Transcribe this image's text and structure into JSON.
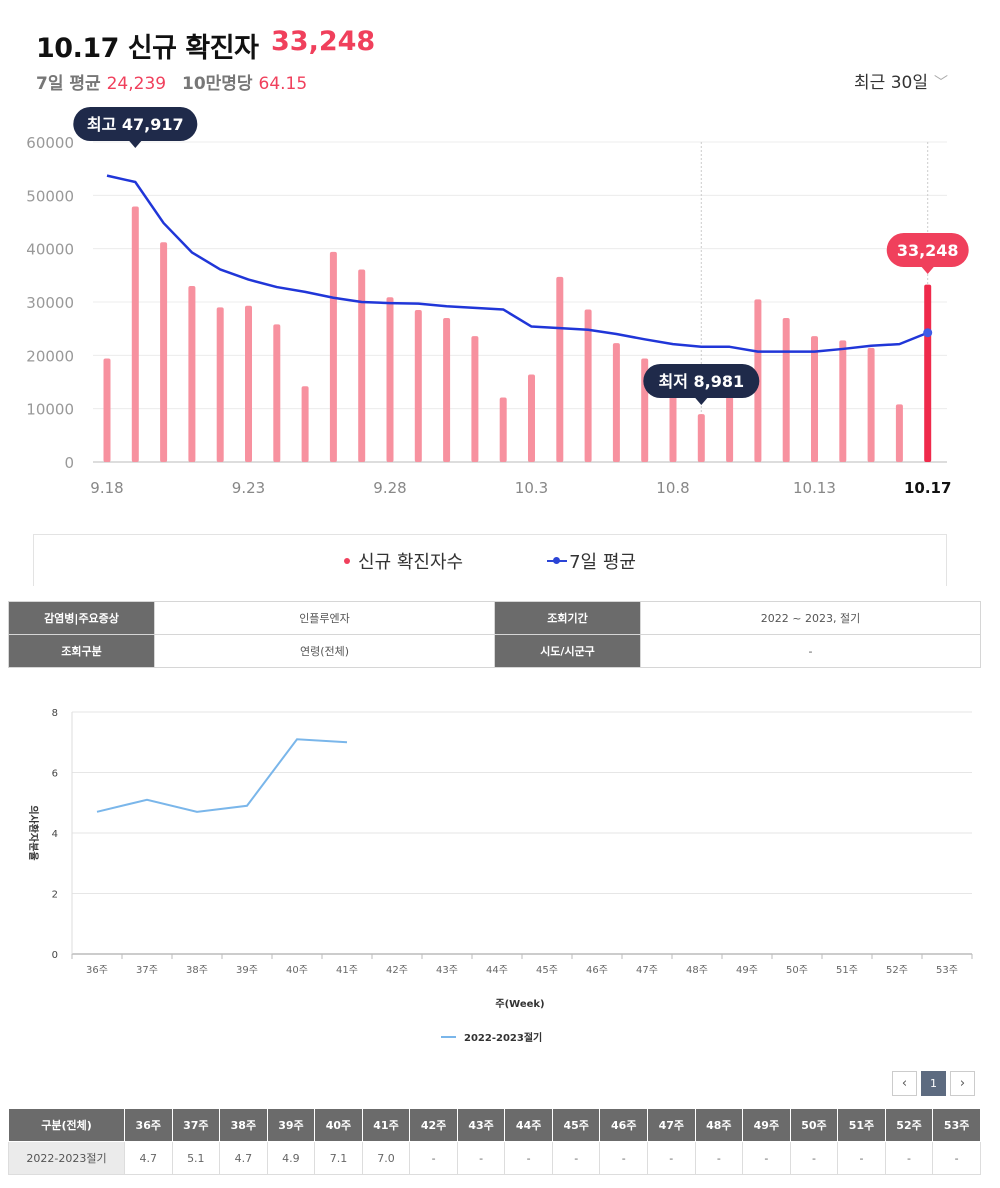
{
  "header": {
    "title": "10.17 신규 확진자",
    "value": "33,248",
    "avg_label": "7일 평균",
    "avg_value": "24,239",
    "per100k_label": "10만명당",
    "per100k_value": "64.15",
    "period_label": "최근 30일"
  },
  "legend": {
    "daily": "신규 확진자수",
    "avg": "7일 평균"
  },
  "info_table": {
    "disease_label": "감염병|주요증상",
    "disease_value": "인플루엔자",
    "period_label": "조회기간",
    "period_value": "2022 ~ 2023, 절기",
    "category_label": "조회구분",
    "category_value": "연령(전체)",
    "region_label": "시도/시군구",
    "region_value": "-"
  },
  "pagination": {
    "prev": "‹",
    "current": "1",
    "next": "›"
  },
  "colors": {
    "bar": "#f7919f",
    "bar_last": "#ef2a4b",
    "avg_line": "#2036d8",
    "flu_line": "#7ab6ea",
    "badge_dark": "#1f2a4a",
    "badge_red": "#f0405c"
  },
  "chart_data": [
    {
      "type": "bar",
      "x": [
        "9.18",
        "9.19",
        "9.20",
        "9.21",
        "9.22",
        "9.23",
        "9.24",
        "9.25",
        "9.26",
        "9.27",
        "9.28",
        "9.29",
        "9.30",
        "10.1",
        "10.2",
        "10.3",
        "10.4",
        "10.5",
        "10.6",
        "10.7",
        "10.8",
        "10.9",
        "10.10",
        "10.11",
        "10.12",
        "10.13",
        "10.14",
        "10.15",
        "10.16",
        "10.17"
      ],
      "tick_labels": [
        "9.18",
        "9.23",
        "9.28",
        "10.3",
        "10.8",
        "10.13",
        "10.17"
      ],
      "series": [
        {
          "name": "신규 확진자수",
          "type": "bar",
          "values": [
            19400,
            47917,
            41200,
            33000,
            29000,
            29300,
            25800,
            14200,
            39400,
            36100,
            30900,
            28500,
            27000,
            23600,
            12100,
            16400,
            34700,
            28600,
            22300,
            19400,
            14000,
            8981,
            14200,
            30500,
            27000,
            23600,
            22800,
            21400,
            10800,
            33248
          ]
        },
        {
          "name": "7일 평균",
          "type": "line",
          "values": [
            53700,
            52500,
            44800,
            39300,
            36100,
            34200,
            32800,
            31900,
            30800,
            30000,
            29800,
            29700,
            29200,
            28900,
            28600,
            25400,
            25100,
            24800,
            24000,
            23000,
            22100,
            21600,
            21600,
            20700,
            20700,
            20700,
            21200,
            21800,
            22100,
            24239
          ]
        }
      ],
      "ylim": [
        0,
        60000
      ],
      "yticks": [
        0,
        10000,
        20000,
        30000,
        40000,
        50000,
        60000
      ],
      "annotations": [
        {
          "label": "최고 47,917",
          "index": 1
        },
        {
          "label": "최저 8,981",
          "index": 21
        },
        {
          "label": "33,248",
          "index": 29
        }
      ],
      "grid": true
    },
    {
      "type": "line",
      "categories": [
        "36주",
        "37주",
        "38주",
        "39주",
        "40주",
        "41주",
        "42주",
        "43주",
        "44주",
        "45주",
        "46주",
        "47주",
        "48주",
        "49주",
        "50주",
        "51주",
        "52주",
        "53주"
      ],
      "series": [
        {
          "name": "2022-2023절기",
          "values": [
            4.7,
            5.1,
            4.7,
            4.9,
            7.1,
            7.0,
            null,
            null,
            null,
            null,
            null,
            null,
            null,
            null,
            null,
            null,
            null,
            null
          ]
        }
      ],
      "xlabel": "주(Week)",
      "ylabel": "의사환자분율",
      "ylim": [
        0,
        8
      ],
      "yticks": [
        0,
        2,
        4,
        6,
        8
      ],
      "grid": true
    }
  ],
  "week_table": {
    "row_header_label": "구분(전체)",
    "headers": [
      "36주",
      "37주",
      "38주",
      "39주",
      "40주",
      "41주",
      "42주",
      "43주",
      "44주",
      "45주",
      "46주",
      "47주",
      "48주",
      "49주",
      "50주",
      "51주",
      "52주",
      "53주"
    ],
    "row_label": "2022-2023절기",
    "cells": [
      "4.7",
      "5.1",
      "4.7",
      "4.9",
      "7.1",
      "7.0",
      "-",
      "-",
      "-",
      "-",
      "-",
      "-",
      "-",
      "-",
      "-",
      "-",
      "-",
      "-"
    ]
  }
}
